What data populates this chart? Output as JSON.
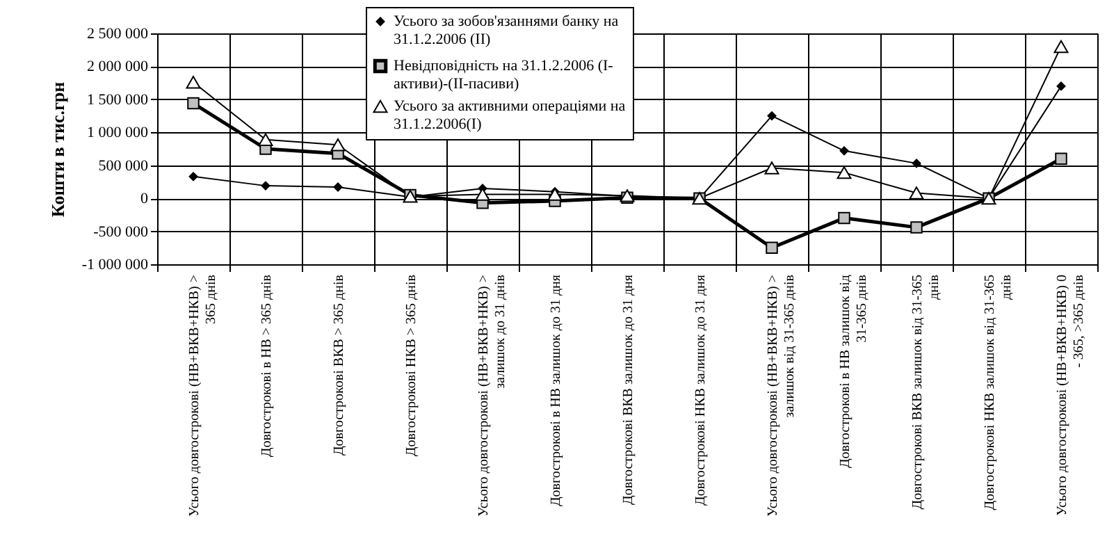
{
  "chart_data": {
    "type": "line",
    "ylabel": "Кошти в тис.грн",
    "categories": [
      "Усього довгострокові (НВ+ВКВ+НКВ) > 365 днів",
      "Довгострокові  в НВ > 365 днів",
      "Довгострокові ВКВ > 365 днів",
      "Довгострокові НКВ > 365 днів",
      "Усього довгострокові (НВ+ВКВ+НКВ) > залишок до 31 днів",
      "Довгострокові  в НВ залишок до 31 дня",
      "Довгострокові ВКВ  залишок до 31 дня",
      "Довгострокові НКВ  залишок до 31 дня",
      "Усього довгострокові (НВ+ВКВ+НКВ) > залишок від 31-365 днів",
      "Довгострокові  в НВ залишок від 31-365 днів",
      "Довгострокові ВКВ  залишок від 31-365 днів",
      "Довгострокові НКВ  залишок від 31-365 днів",
      "Усього довгострокові (НВ+ВКВ+НКВ) 0 - 365, >365 днів"
    ],
    "series": [
      {
        "name": "Усього за зобов'язаннями банку на 31.1.2.2006 (II)",
        "color": "#000000",
        "marker": "diamond",
        "values": [
          330000,
          190000,
          170000,
          20000,
          150000,
          100000,
          30000,
          0,
          1250000,
          720000,
          530000,
          0,
          1700000
        ]
      },
      {
        "name": "Невідповідність на 31.1.2.2006 (I- активи)-(II-пасиви)",
        "color": "#000000",
        "marker": "square",
        "values": [
          1440000,
          750000,
          680000,
          50000,
          -70000,
          -40000,
          10000,
          0,
          -750000,
          -300000,
          -440000,
          0,
          600000
        ]
      },
      {
        "name": "Усього за активними операціями на 31.1.2.2006(I)",
        "color": "#000000",
        "marker": "triangle",
        "values": [
          1760000,
          890000,
          810000,
          30000,
          60000,
          60000,
          40000,
          0,
          460000,
          390000,
          80000,
          0,
          2300000
        ]
      }
    ],
    "ylim": [
      -1000000,
      2500000
    ],
    "yticks": [
      {
        "value": -1000000,
        "label": "-1 000 000"
      },
      {
        "value": -500000,
        "label": "-500 000"
      },
      0,
      {
        "value": 500000,
        "label": "500 000"
      },
      {
        "value": 1000000,
        "label": "1 000 000"
      },
      {
        "value": 1500000,
        "label": "1 500 000"
      },
      {
        "value": 2000000,
        "label": "2 000 000"
      },
      {
        "value": 2500000,
        "label": "2 500 000"
      }
    ],
    "grid": true,
    "legend": "top"
  }
}
